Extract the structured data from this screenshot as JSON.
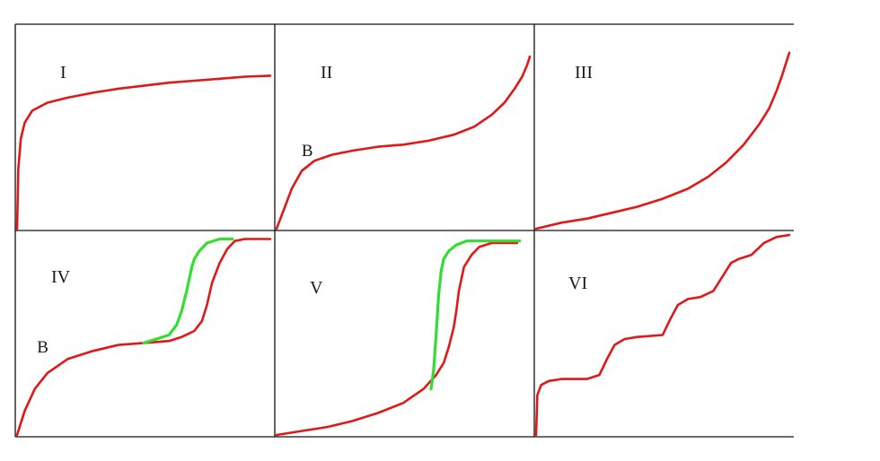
{
  "colors": {
    "red_curve": "#e01818",
    "green_curve": "#33dd33",
    "frame": "#111111",
    "background": "#ffffff"
  },
  "chart_data": [
    {
      "type": "line",
      "panel_label": "I",
      "point_labels": [],
      "xlim": [
        0,
        1
      ],
      "ylim": [
        0,
        1
      ],
      "series": [
        {
          "color": "#e01818",
          "x": [
            0.0,
            0.005,
            0.015,
            0.03,
            0.06,
            0.12,
            0.2,
            0.3,
            0.4,
            0.5,
            0.6,
            0.7,
            0.8,
            0.9,
            1.0
          ],
          "y": [
            0.0,
            0.3,
            0.45,
            0.53,
            0.59,
            0.63,
            0.655,
            0.68,
            0.7,
            0.715,
            0.73,
            0.74,
            0.75,
            0.76,
            0.765
          ]
        }
      ]
    },
    {
      "type": "line",
      "panel_label": "II",
      "point_labels": [
        {
          "text": "B",
          "x": 0.12,
          "y": 0.34
        }
      ],
      "xlim": [
        0,
        1
      ],
      "ylim": [
        0,
        1
      ],
      "series": [
        {
          "color": "#e01818",
          "x": [
            0.0,
            0.03,
            0.06,
            0.1,
            0.15,
            0.22,
            0.3,
            0.4,
            0.5,
            0.6,
            0.7,
            0.78,
            0.85,
            0.9,
            0.94,
            0.97,
            0.99,
            1.0
          ],
          "y": [
            0.0,
            0.1,
            0.2,
            0.29,
            0.34,
            0.37,
            0.39,
            0.41,
            0.42,
            0.44,
            0.47,
            0.51,
            0.57,
            0.63,
            0.7,
            0.76,
            0.82,
            0.86
          ]
        }
      ]
    },
    {
      "type": "line",
      "panel_label": "III",
      "point_labels": [],
      "xlim": [
        0,
        1
      ],
      "ylim": [
        0,
        1
      ],
      "series": [
        {
          "color": "#e01818",
          "x": [
            0.0,
            0.1,
            0.2,
            0.3,
            0.4,
            0.5,
            0.6,
            0.68,
            0.75,
            0.82,
            0.88,
            0.92,
            0.95,
            0.97,
            0.99,
            1.0
          ],
          "y": [
            0.0,
            0.03,
            0.05,
            0.08,
            0.11,
            0.15,
            0.2,
            0.26,
            0.33,
            0.42,
            0.52,
            0.6,
            0.69,
            0.76,
            0.84,
            0.88
          ]
        }
      ]
    },
    {
      "type": "line",
      "panel_label": "IV",
      "point_labels": [
        {
          "text": "B",
          "x": 0.1,
          "y": 0.39
        }
      ],
      "xlim": [
        0,
        1
      ],
      "ylim": [
        0,
        1
      ],
      "series": [
        {
          "color": "#e01818",
          "x": [
            0.0,
            0.03,
            0.07,
            0.12,
            0.2,
            0.3,
            0.4,
            0.5,
            0.6,
            0.65,
            0.7,
            0.73,
            0.75,
            0.77,
            0.8,
            0.83,
            0.86,
            0.9,
            0.95,
            1.0
          ],
          "y": [
            0.0,
            0.12,
            0.23,
            0.31,
            0.38,
            0.42,
            0.45,
            0.46,
            0.47,
            0.49,
            0.52,
            0.57,
            0.65,
            0.76,
            0.86,
            0.93,
            0.97,
            0.98,
            0.98,
            0.98
          ]
        },
        {
          "color": "#33dd33",
          "x": [
            0.5,
            0.55,
            0.6,
            0.63,
            0.65,
            0.67,
            0.69,
            0.7,
            0.72,
            0.75,
            0.8,
            0.85
          ],
          "y": [
            0.46,
            0.48,
            0.5,
            0.55,
            0.62,
            0.72,
            0.84,
            0.88,
            0.92,
            0.96,
            0.98,
            0.98
          ]
        }
      ]
    },
    {
      "type": "line",
      "panel_label": "V",
      "point_labels": [],
      "xlim": [
        0,
        1
      ],
      "ylim": [
        0,
        1
      ],
      "series": [
        {
          "color": "#e01818",
          "x": [
            0.0,
            0.1,
            0.2,
            0.3,
            0.4,
            0.5,
            0.58,
            0.63,
            0.66,
            0.68,
            0.7,
            0.71,
            0.72,
            0.74,
            0.77,
            0.8,
            0.85,
            0.9,
            0.95
          ],
          "y": [
            0.0,
            0.02,
            0.04,
            0.07,
            0.11,
            0.16,
            0.23,
            0.3,
            0.36,
            0.44,
            0.54,
            0.62,
            0.72,
            0.84,
            0.9,
            0.94,
            0.96,
            0.96,
            0.96
          ]
        },
        {
          "color": "#33dd33",
          "x": [
            0.61,
            0.62,
            0.63,
            0.64,
            0.65,
            0.66,
            0.68,
            0.71,
            0.75,
            0.8,
            0.85,
            0.9,
            0.96
          ],
          "y": [
            0.23,
            0.32,
            0.5,
            0.7,
            0.82,
            0.88,
            0.92,
            0.95,
            0.97,
            0.97,
            0.97,
            0.97,
            0.97
          ]
        }
      ]
    },
    {
      "type": "line",
      "panel_label": "VI",
      "point_labels": [],
      "xlim": [
        0,
        1
      ],
      "ylim": [
        0,
        1
      ],
      "series": [
        {
          "color": "#e01818",
          "x": [
            0.0,
            0.005,
            0.02,
            0.05,
            0.1,
            0.2,
            0.25,
            0.28,
            0.31,
            0.35,
            0.4,
            0.5,
            0.53,
            0.56,
            0.6,
            0.65,
            0.7,
            0.74,
            0.77,
            0.8,
            0.85,
            0.9,
            0.95,
            1.0
          ],
          "y": [
            0.0,
            0.2,
            0.25,
            0.27,
            0.28,
            0.28,
            0.3,
            0.38,
            0.45,
            0.48,
            0.49,
            0.5,
            0.58,
            0.65,
            0.68,
            0.69,
            0.72,
            0.8,
            0.86,
            0.88,
            0.9,
            0.96,
            0.99,
            1.0
          ]
        }
      ]
    }
  ]
}
